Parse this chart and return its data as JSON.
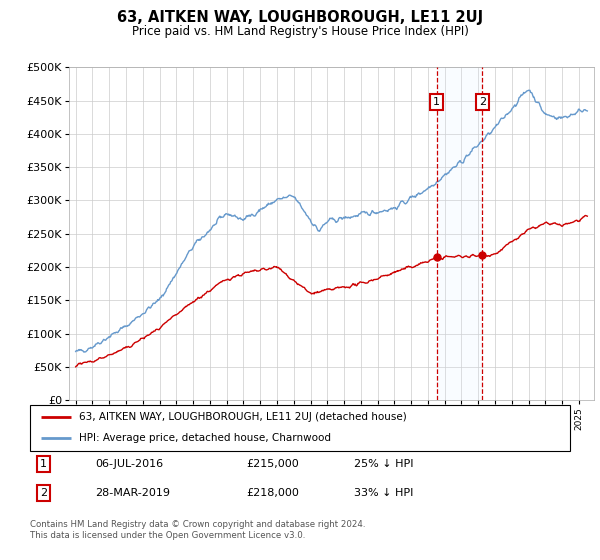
{
  "title": "63, AITKEN WAY, LOUGHBOROUGH, LE11 2UJ",
  "subtitle": "Price paid vs. HM Land Registry's House Price Index (HPI)",
  "legend_line1": "63, AITKEN WAY, LOUGHBOROUGH, LE11 2UJ (detached house)",
  "legend_line2": "HPI: Average price, detached house, Charnwood",
  "sale1_label": "1",
  "sale1_text": "06-JUL-2016",
  "sale1_price_str": "£215,000",
  "sale1_pct": "25% ↓ HPI",
  "sale1_year": 2016.511,
  "sale1_price": 215000,
  "sale2_label": "2",
  "sale2_text": "28-MAR-2019",
  "sale2_price_str": "£218,000",
  "sale2_pct": "33% ↓ HPI",
  "sale2_year": 2019.238,
  "sale2_price": 218000,
  "footer": "Contains HM Land Registry data © Crown copyright and database right 2024.\nThis data is licensed under the Open Government Licence v3.0.",
  "red_color": "#cc0000",
  "blue_color": "#6699cc",
  "shade_color": "#ddeeff",
  "ylim": [
    0,
    500000
  ],
  "yticks": [
    0,
    50000,
    100000,
    150000,
    200000,
    250000,
    300000,
    350000,
    400000,
    450000,
    500000
  ],
  "xlim_left": 1994.6,
  "xlim_right": 2025.9
}
